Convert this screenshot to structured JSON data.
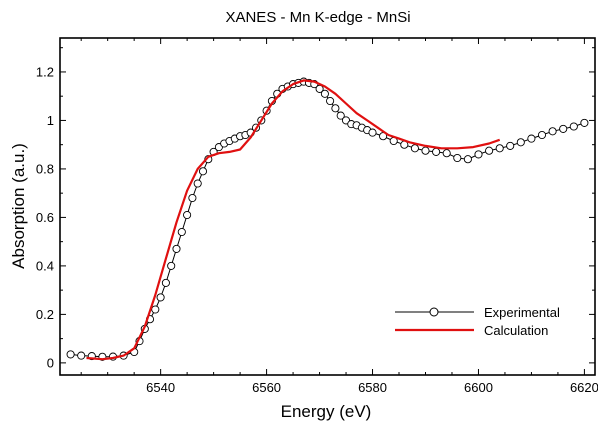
{
  "chart_data": {
    "type": "line",
    "title": "XANES - Mn K-edge - MnSi",
    "xlabel": "Energy (eV)",
    "ylabel": "Absorption (a.u.)",
    "xlim": [
      6521,
      6622
    ],
    "ylim": [
      -0.05,
      1.34
    ],
    "xticks": [
      6540,
      6560,
      6580,
      6600,
      6620
    ],
    "yticks": [
      0,
      0.2,
      0.4,
      0.6,
      0.8,
      1,
      1.2
    ],
    "xtick_labels": [
      "6540",
      "6560",
      "6580",
      "6600",
      "6620"
    ],
    "ytick_labels": [
      "0",
      "0.2",
      "0.4",
      "0.6",
      "0.8",
      "1",
      "1.2"
    ],
    "legend_position": "bottom-right",
    "grid": false,
    "series": [
      {
        "name": "Experimental",
        "style": "line-with-open-circles",
        "color": "#000000",
        "x": [
          6523,
          6525,
          6527,
          6529,
          6531,
          6533,
          6535,
          6536,
          6537,
          6538,
          6539,
          6540,
          6541,
          6542,
          6543,
          6544,
          6545,
          6546,
          6547,
          6548,
          6549,
          6550,
          6551,
          6552,
          6553,
          6554,
          6555,
          6556,
          6557,
          6558,
          6559,
          6560,
          6561,
          6562,
          6563,
          6564,
          6565,
          6566,
          6567,
          6568,
          6569,
          6570,
          6571,
          6572,
          6573,
          6574,
          6575,
          6576,
          6577,
          6578,
          6579,
          6580,
          6582,
          6584,
          6586,
          6588,
          6590,
          6592,
          6594,
          6596,
          6598,
          6600,
          6602,
          6604,
          6606,
          6608,
          6610,
          6612,
          6614,
          6616,
          6618,
          6620
        ],
        "y": [
          0.035,
          0.03,
          0.028,
          0.025,
          0.026,
          0.03,
          0.045,
          0.09,
          0.14,
          0.18,
          0.22,
          0.27,
          0.33,
          0.4,
          0.47,
          0.54,
          0.61,
          0.68,
          0.74,
          0.79,
          0.84,
          0.87,
          0.89,
          0.905,
          0.915,
          0.925,
          0.935,
          0.94,
          0.95,
          0.97,
          1.0,
          1.04,
          1.08,
          1.11,
          1.13,
          1.14,
          1.15,
          1.155,
          1.16,
          1.155,
          1.15,
          1.13,
          1.11,
          1.08,
          1.05,
          1.02,
          1.0,
          0.985,
          0.98,
          0.97,
          0.96,
          0.95,
          0.935,
          0.915,
          0.9,
          0.885,
          0.875,
          0.87,
          0.865,
          0.845,
          0.84,
          0.86,
          0.875,
          0.885,
          0.895,
          0.91,
          0.925,
          0.94,
          0.955,
          0.965,
          0.975,
          0.99
        ]
      },
      {
        "name": "Calculation",
        "style": "line",
        "color": "#e01010",
        "x": [
          6526,
          6529,
          6531,
          6533,
          6535,
          6537,
          6539,
          6541,
          6543,
          6545,
          6547,
          6549,
          6551,
          6553,
          6555,
          6557,
          6559,
          6561,
          6563,
          6565,
          6567,
          6569,
          6571,
          6573,
          6575,
          6577,
          6579,
          6581,
          6583,
          6585,
          6587,
          6590,
          6593,
          6596,
          6599,
          6602,
          6604
        ],
        "y": [
          0.02,
          0.015,
          0.02,
          0.03,
          0.06,
          0.15,
          0.28,
          0.43,
          0.58,
          0.71,
          0.8,
          0.85,
          0.865,
          0.87,
          0.88,
          0.93,
          1.0,
          1.07,
          1.12,
          1.15,
          1.165,
          1.16,
          1.14,
          1.11,
          1.07,
          1.03,
          1.0,
          0.97,
          0.94,
          0.925,
          0.91,
          0.895,
          0.885,
          0.885,
          0.89,
          0.905,
          0.92
        ]
      }
    ]
  }
}
